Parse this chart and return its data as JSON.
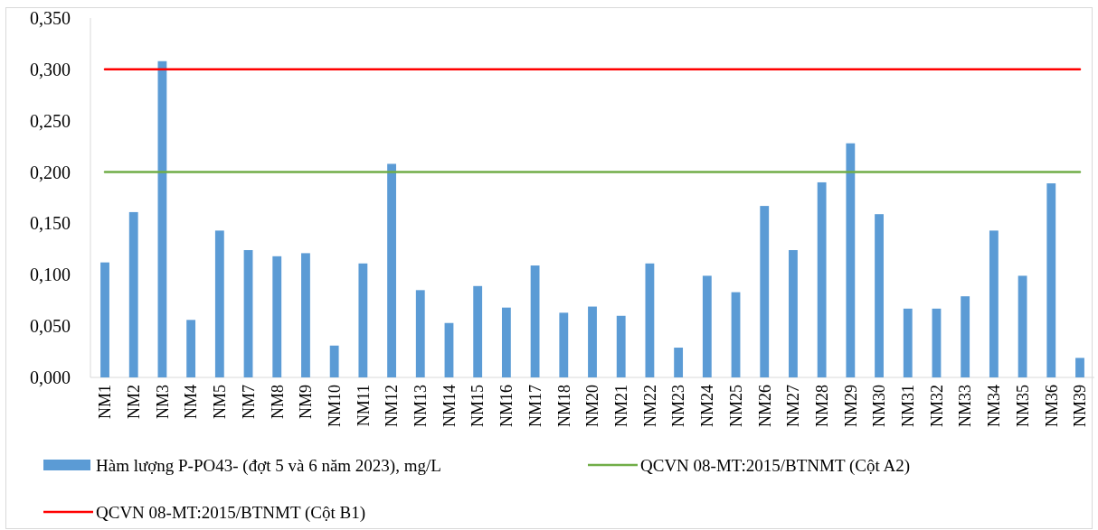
{
  "chart_data": {
    "type": "bar",
    "categories": [
      "NM1",
      "NM2",
      "NM3",
      "NM4",
      "NM5",
      "NM7",
      "NM8",
      "NM9",
      "NM10",
      "NM11",
      "NM12",
      "NM13",
      "NM14",
      "NM15",
      "NM16",
      "NM17",
      "NM18",
      "NM20",
      "NM21",
      "NM22",
      "NM23",
      "NM24",
      "NM25",
      "NM26",
      "NM27",
      "NM28",
      "NM29",
      "NM30",
      "NM31",
      "NM32",
      "NM33",
      "NM34",
      "NM35",
      "NM36",
      "NM39"
    ],
    "series": [
      {
        "name": "Hàm lượng P-PO43- (đợt 5 và 6 năm 2023), mg/L",
        "color": "#5b9bd5",
        "values": [
          0.112,
          0.161,
          0.308,
          0.056,
          0.143,
          0.124,
          0.118,
          0.121,
          0.031,
          0.111,
          0.208,
          0.085,
          0.053,
          0.089,
          0.068,
          0.109,
          0.063,
          0.069,
          0.06,
          0.111,
          0.029,
          0.099,
          0.083,
          0.167,
          0.124,
          0.19,
          0.228,
          0.159,
          0.067,
          0.067,
          0.079,
          0.143,
          0.099,
          0.189,
          0.019
        ]
      },
      {
        "type": "line",
        "name": "QCVN 08-MT:2015/BTNMT (Cột A2)",
        "color": "#70ad47",
        "values": [
          0.2,
          0.2,
          0.2,
          0.2,
          0.2,
          0.2,
          0.2,
          0.2,
          0.2,
          0.2,
          0.2,
          0.2,
          0.2,
          0.2,
          0.2,
          0.2,
          0.2,
          0.2,
          0.2,
          0.2,
          0.2,
          0.2,
          0.2,
          0.2,
          0.2,
          0.2,
          0.2,
          0.2,
          0.2,
          0.2,
          0.2,
          0.2,
          0.2,
          0.2,
          0.2
        ]
      },
      {
        "type": "line",
        "name": "QCVN 08-MT:2015/BTNMT (Cột B1)",
        "color": "#ff0000",
        "values": [
          0.3,
          0.3,
          0.3,
          0.3,
          0.3,
          0.3,
          0.3,
          0.3,
          0.3,
          0.3,
          0.3,
          0.3,
          0.3,
          0.3,
          0.3,
          0.3,
          0.3,
          0.3,
          0.3,
          0.3,
          0.3,
          0.3,
          0.3,
          0.3,
          0.3,
          0.3,
          0.3,
          0.3,
          0.3,
          0.3,
          0.3,
          0.3,
          0.3,
          0.3,
          0.3
        ]
      }
    ],
    "ylim": [
      0,
      0.35
    ],
    "yticks": [
      {
        "value": 0,
        "label": "0,000"
      },
      {
        "value": 0.05,
        "label": "0,050"
      },
      {
        "value": 0.1,
        "label": "0,100"
      },
      {
        "value": 0.15,
        "label": "0,150"
      },
      {
        "value": 0.2,
        "label": "0,200"
      },
      {
        "value": 0.25,
        "label": "0,250"
      },
      {
        "value": 0.3,
        "label": "0,300"
      },
      {
        "value": 0.35,
        "label": "0,350"
      }
    ],
    "grid": false,
    "legend": "bottom"
  }
}
